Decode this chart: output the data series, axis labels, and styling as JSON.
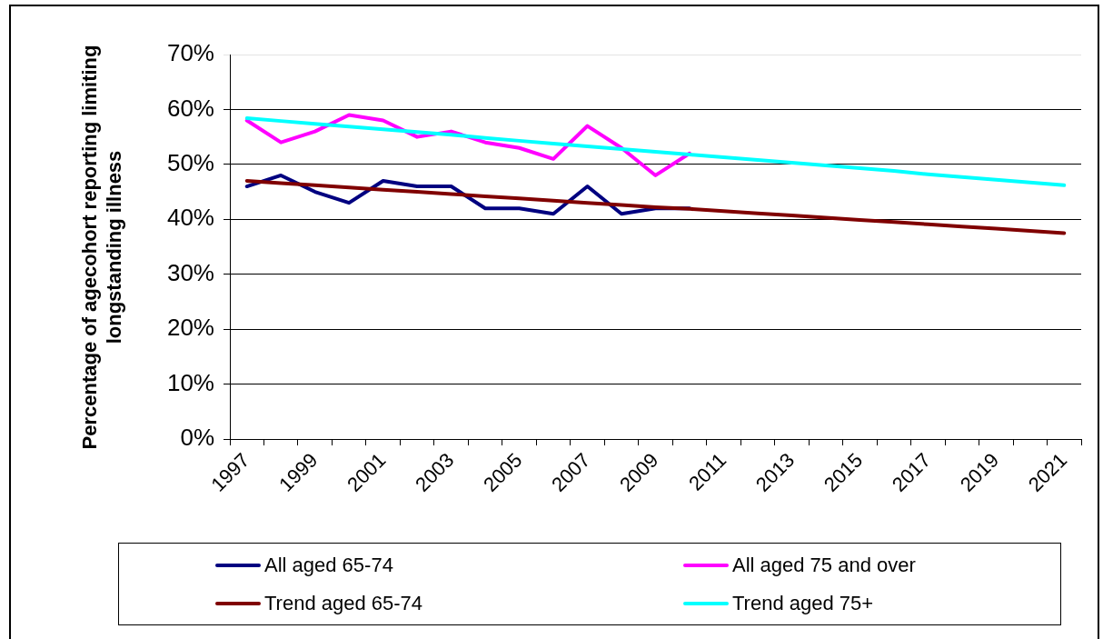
{
  "chart_data": {
    "type": "line",
    "ylabel": "Percentage of agecohort reporting limiting longstanding illness",
    "categories": [
      "1997",
      null,
      "1999",
      null,
      "2001",
      null,
      "2003",
      null,
      "2005",
      null,
      "2007",
      null,
      "2009",
      null,
      "2011",
      null,
      "2013",
      null,
      "2015",
      null,
      "2017",
      null,
      "2019",
      null,
      "2021"
    ],
    "series": [
      {
        "name": "All aged 65-74",
        "color": "#000080",
        "values": [
          46,
          48,
          45,
          43,
          47,
          46,
          46,
          42,
          42,
          41,
          46,
          41,
          42,
          42,
          null,
          null,
          null,
          null,
          null,
          null,
          null,
          null,
          null,
          null,
          null
        ]
      },
      {
        "name": "All aged 75 and over",
        "color": "#ff00ff",
        "values": [
          58,
          54,
          56,
          59,
          58,
          55,
          56,
          54,
          53,
          51,
          57,
          53,
          48,
          52,
          null,
          null,
          null,
          null,
          null,
          null,
          null,
          null,
          null,
          null,
          null
        ]
      },
      {
        "name": "Trend aged 65-74",
        "color": "#800000",
        "values": [
          47.0,
          46.6,
          46.2,
          45.8,
          45.4,
          45.0,
          44.6,
          44.2,
          43.8,
          43.4,
          43.0,
          42.6,
          42.2,
          41.9,
          41.5,
          41.1,
          40.7,
          40.3,
          39.9,
          39.5,
          39.1,
          38.7,
          38.3,
          37.9,
          37.5
        ]
      },
      {
        "name": "Trend aged 75+",
        "color": "#00ffff",
        "values": [
          58.4,
          57.9,
          57.4,
          56.9,
          56.4,
          55.9,
          55.4,
          54.8,
          54.3,
          53.8,
          53.3,
          52.8,
          52.3,
          51.8,
          51.3,
          50.8,
          50.3,
          49.8,
          49.3,
          48.8,
          48.2,
          47.7,
          47.2,
          46.7,
          46.2
        ]
      }
    ],
    "ylim": [
      0,
      70
    ],
    "yticks": [
      {
        "value": 0,
        "label": "0%"
      },
      {
        "value": 10,
        "label": "10%"
      },
      {
        "value": 20,
        "label": "20%"
      },
      {
        "value": 30,
        "label": "30%"
      },
      {
        "value": 40,
        "label": "40%"
      },
      {
        "value": 50,
        "label": "50%"
      },
      {
        "value": 60,
        "label": "60%"
      },
      {
        "value": 70,
        "label": "70%"
      }
    ],
    "grid": "y",
    "legend": "bottom",
    "marker": "none",
    "line_style": "solid"
  }
}
